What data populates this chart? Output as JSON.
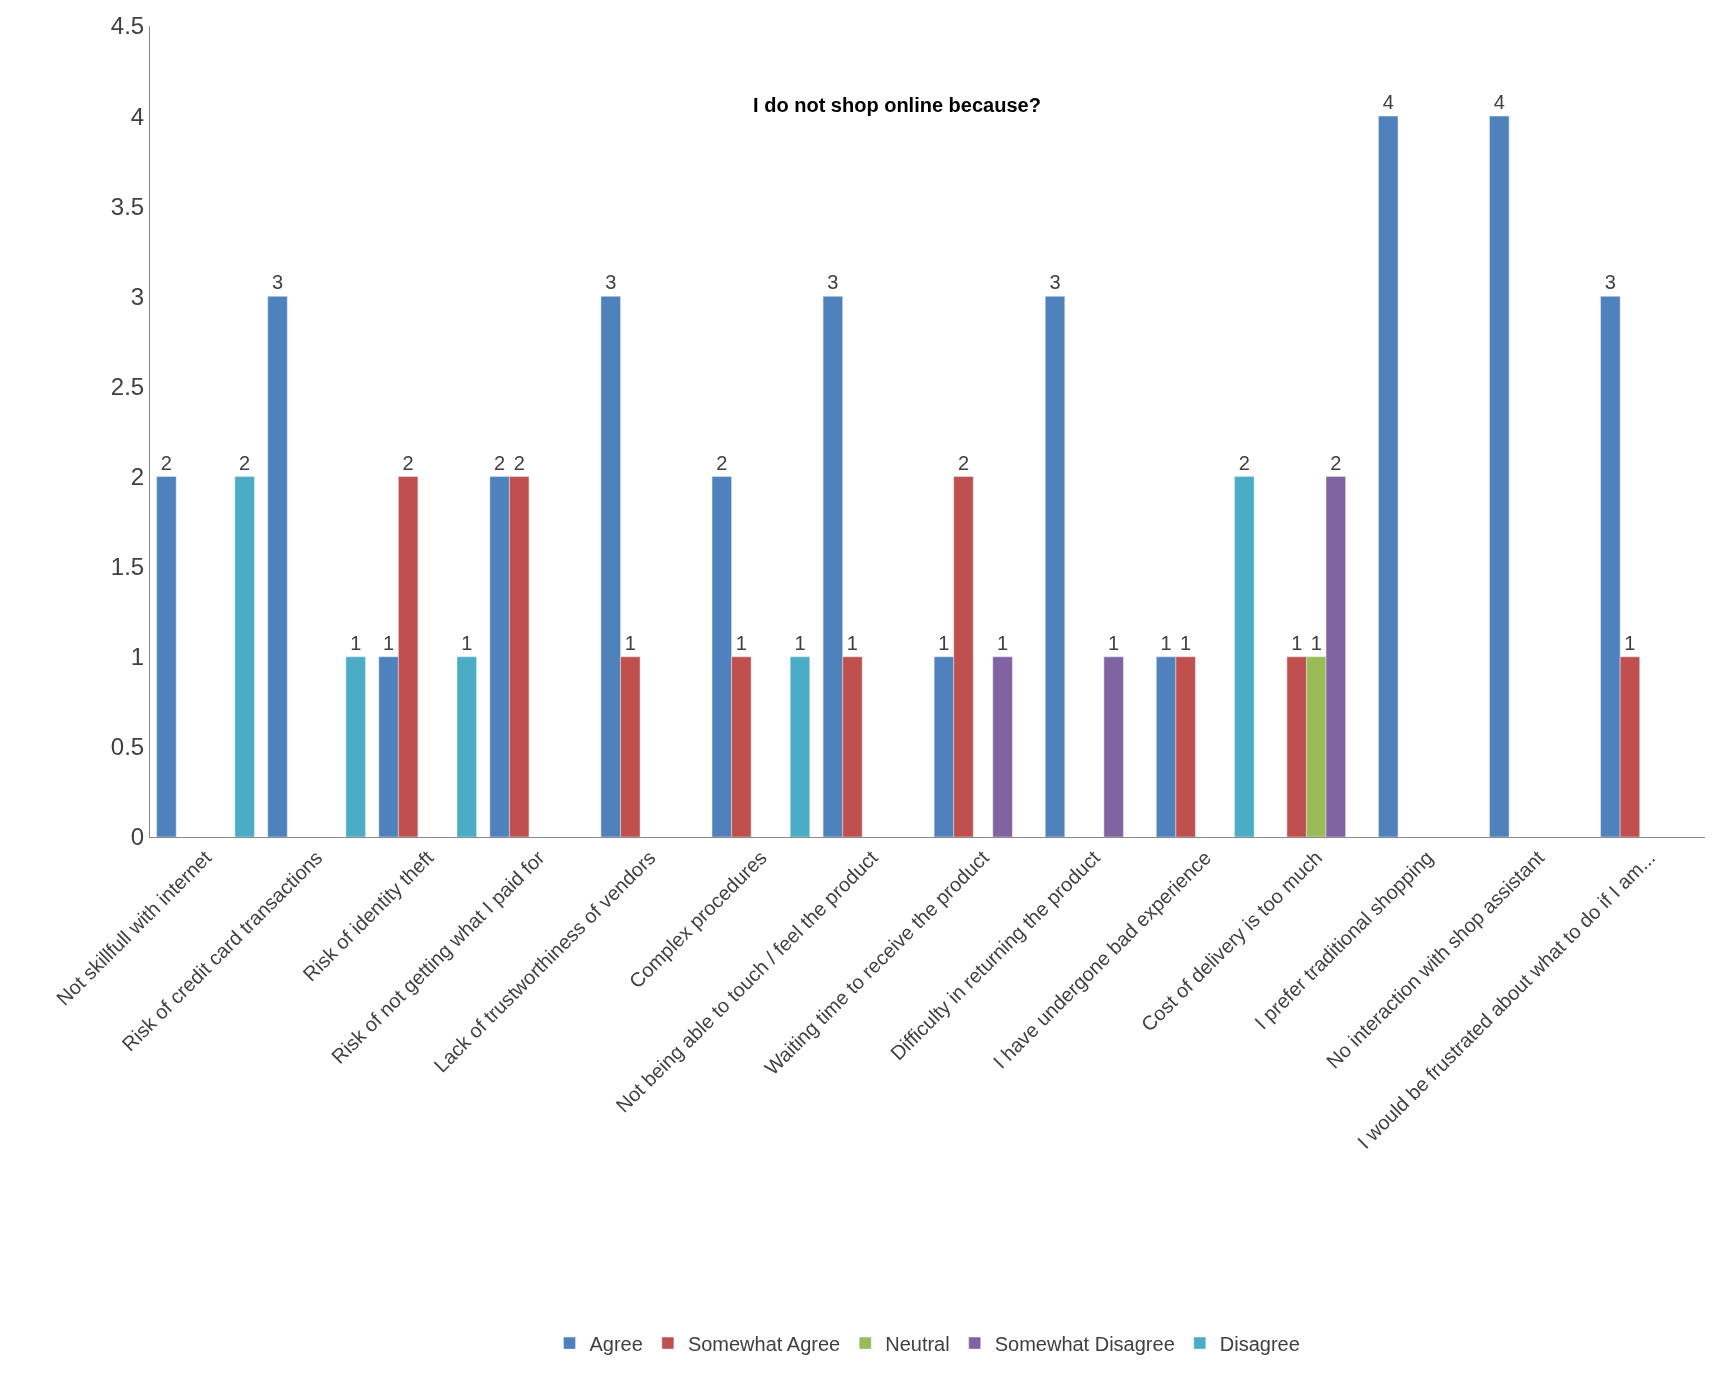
{
  "chart_data": {
    "type": "bar",
    "title": "I do not shop online because?",
    "categories": [
      "Not skillfull with internet",
      "Risk of credit card transactions",
      "Risk of identity theft",
      "Risk of not getting what I paid for",
      "Lack of trustworthiness of vendors",
      "Complex procedures",
      "Not being able to touch / feel the product",
      "Waiting time to receive the product",
      "Difficulty in returning the product",
      "I have undergone bad experience",
      "Cost of delivery is too much",
      "I prefer traditional shopping",
      "No interaction with shop assistant",
      "I would be frustrated about what to do if I am..."
    ],
    "series": [
      {
        "name": "Agree",
        "color": "#4f81bd",
        "values": [
          2,
          3,
          1,
          2,
          3,
          2,
          3,
          1,
          3,
          1,
          null,
          4,
          4,
          3
        ]
      },
      {
        "name": "Somewhat Agree",
        "color": "#c0504d",
        "values": [
          null,
          null,
          2,
          2,
          1,
          1,
          1,
          2,
          null,
          1,
          1,
          null,
          null,
          1
        ]
      },
      {
        "name": "Neutral",
        "color": "#9bbb59",
        "values": [
          null,
          null,
          null,
          null,
          null,
          null,
          null,
          null,
          null,
          null,
          1,
          null,
          null,
          null
        ]
      },
      {
        "name": "Somewhat Disagree",
        "color": "#8064a2",
        "values": [
          null,
          null,
          null,
          null,
          null,
          null,
          null,
          1,
          1,
          null,
          2,
          null,
          null,
          null
        ]
      },
      {
        "name": "Disagree",
        "color": "#4bacc6",
        "values": [
          2,
          1,
          1,
          null,
          null,
          1,
          null,
          null,
          null,
          2,
          null,
          null,
          null,
          null
        ]
      }
    ],
    "ylim": [
      0,
      4.5
    ],
    "yticks": [
      0,
      0.5,
      1,
      1.5,
      2,
      2.5,
      3,
      3.5,
      4,
      4.5
    ],
    "grid": false,
    "legend": "bottom",
    "data_labels": true
  }
}
